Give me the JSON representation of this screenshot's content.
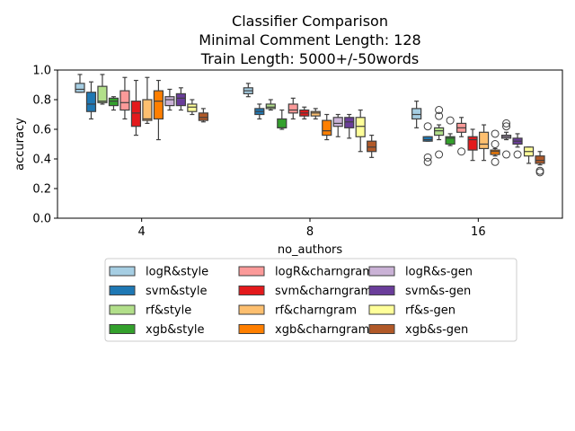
{
  "chart_data": {
    "type": "box",
    "title_lines": [
      "Classifier Comparison",
      "Minimal Comment Length: 128",
      "Train Length: 5000+/-50words"
    ],
    "xlabel": "no_authors",
    "ylabel": "accuracy",
    "ylim": [
      0.0,
      1.0
    ],
    "yticks": [
      "0.0",
      "0.2",
      "0.4",
      "0.6",
      "0.8",
      "1.0"
    ],
    "categories": [
      "4",
      "8",
      "16"
    ],
    "legend_position": "below-plot",
    "series": [
      {
        "name": "logR&style",
        "color": "#a6cee3",
        "boxes": [
          {
            "q1": 0.85,
            "med": 0.87,
            "q3": 0.91,
            "wlo": 0.85,
            "whi": 0.97,
            "fliers": []
          },
          {
            "q1": 0.84,
            "med": 0.86,
            "q3": 0.88,
            "wlo": 0.82,
            "whi": 0.91,
            "fliers": []
          },
          {
            "q1": 0.67,
            "med": 0.7,
            "q3": 0.74,
            "wlo": 0.61,
            "whi": 0.79,
            "fliers": []
          }
        ]
      },
      {
        "name": "svm&style",
        "color": "#1f78b4",
        "boxes": [
          {
            "q1": 0.72,
            "med": 0.77,
            "q3": 0.85,
            "wlo": 0.67,
            "whi": 0.92,
            "fliers": []
          },
          {
            "q1": 0.7,
            "med": 0.72,
            "q3": 0.74,
            "wlo": 0.67,
            "whi": 0.77,
            "fliers": []
          },
          {
            "q1": 0.52,
            "med": 0.53,
            "q3": 0.55,
            "wlo": 0.52,
            "whi": 0.55,
            "fliers": [
              0.41,
              0.38,
              0.62
            ]
          }
        ]
      },
      {
        "name": "rf&style",
        "color": "#b2df8a",
        "boxes": [
          {
            "q1": 0.78,
            "med": 0.79,
            "q3": 0.89,
            "wlo": 0.77,
            "whi": 0.97,
            "fliers": []
          },
          {
            "q1": 0.74,
            "med": 0.75,
            "q3": 0.77,
            "wlo": 0.73,
            "whi": 0.8,
            "fliers": []
          },
          {
            "q1": 0.56,
            "med": 0.59,
            "q3": 0.61,
            "wlo": 0.53,
            "whi": 0.63,
            "fliers": [
              0.43,
              0.69,
              0.73
            ]
          }
        ]
      },
      {
        "name": "xgb&style",
        "color": "#33a02c",
        "boxes": [
          {
            "q1": 0.76,
            "med": 0.79,
            "q3": 0.81,
            "wlo": 0.73,
            "whi": 0.82,
            "fliers": []
          },
          {
            "q1": 0.61,
            "med": 0.61,
            "q3": 0.67,
            "wlo": 0.6,
            "whi": 0.73,
            "fliers": []
          },
          {
            "q1": 0.5,
            "med": 0.54,
            "q3": 0.55,
            "wlo": 0.49,
            "whi": 0.57,
            "fliers": [
              0.66
            ]
          }
        ]
      },
      {
        "name": "logR&charngram",
        "color": "#fb9a99",
        "boxes": [
          {
            "q1": 0.73,
            "med": 0.78,
            "q3": 0.86,
            "wlo": 0.67,
            "whi": 0.95,
            "fliers": []
          },
          {
            "q1": 0.71,
            "med": 0.73,
            "q3": 0.77,
            "wlo": 0.67,
            "whi": 0.81,
            "fliers": []
          },
          {
            "q1": 0.58,
            "med": 0.61,
            "q3": 0.64,
            "wlo": 0.55,
            "whi": 0.68,
            "fliers": [
              0.45
            ]
          }
        ]
      },
      {
        "name": "svm&charngram",
        "color": "#e31a1c",
        "boxes": [
          {
            "q1": 0.62,
            "med": 0.71,
            "q3": 0.79,
            "wlo": 0.56,
            "whi": 0.93,
            "fliers": []
          },
          {
            "q1": 0.69,
            "med": 0.71,
            "q3": 0.73,
            "wlo": 0.67,
            "whi": 0.75,
            "fliers": []
          },
          {
            "q1": 0.46,
            "med": 0.53,
            "q3": 0.55,
            "wlo": 0.39,
            "whi": 0.6,
            "fliers": []
          }
        ]
      },
      {
        "name": "rf&charngram",
        "color": "#fdbf6f",
        "boxes": [
          {
            "q1": 0.66,
            "med": 0.67,
            "q3": 0.8,
            "wlo": 0.64,
            "whi": 0.95,
            "fliers": []
          },
          {
            "q1": 0.69,
            "med": 0.71,
            "q3": 0.72,
            "wlo": 0.67,
            "whi": 0.74,
            "fliers": []
          },
          {
            "q1": 0.47,
            "med": 0.5,
            "q3": 0.58,
            "wlo": 0.39,
            "whi": 0.63,
            "fliers": []
          }
        ]
      },
      {
        "name": "xgb&charngram",
        "color": "#ff7f00",
        "boxes": [
          {
            "q1": 0.67,
            "med": 0.79,
            "q3": 0.86,
            "wlo": 0.53,
            "whi": 0.93,
            "fliers": []
          },
          {
            "q1": 0.56,
            "med": 0.59,
            "q3": 0.66,
            "wlo": 0.53,
            "whi": 0.7,
            "fliers": []
          },
          {
            "q1": 0.43,
            "med": 0.45,
            "q3": 0.46,
            "wlo": 0.42,
            "whi": 0.47,
            "fliers": [
              0.38,
              0.5,
              0.57
            ]
          }
        ]
      },
      {
        "name": "logR&s-gen",
        "color": "#cab2d6",
        "boxes": [
          {
            "q1": 0.76,
            "med": 0.8,
            "q3": 0.82,
            "wlo": 0.73,
            "whi": 0.87,
            "fliers": []
          },
          {
            "q1": 0.62,
            "med": 0.64,
            "q3": 0.68,
            "wlo": 0.55,
            "whi": 0.7,
            "fliers": []
          },
          {
            "q1": 0.54,
            "med": 0.55,
            "q3": 0.56,
            "wlo": 0.53,
            "whi": 0.58,
            "fliers": [
              0.43,
              0.62,
              0.64
            ]
          }
        ]
      },
      {
        "name": "svm&s-gen",
        "color": "#6a3d9a",
        "boxes": [
          {
            "q1": 0.76,
            "med": 0.81,
            "q3": 0.84,
            "wlo": 0.73,
            "whi": 0.88,
            "fliers": []
          },
          {
            "q1": 0.61,
            "med": 0.65,
            "q3": 0.68,
            "wlo": 0.54,
            "whi": 0.7,
            "fliers": []
          },
          {
            "q1": 0.5,
            "med": 0.52,
            "q3": 0.54,
            "wlo": 0.48,
            "whi": 0.57,
            "fliers": [
              0.43
            ]
          }
        ]
      },
      {
        "name": "rf&s-gen",
        "color": "#ffff99",
        "boxes": [
          {
            "q1": 0.72,
            "med": 0.75,
            "q3": 0.77,
            "wlo": 0.7,
            "whi": 0.8,
            "fliers": []
          },
          {
            "q1": 0.55,
            "med": 0.62,
            "q3": 0.68,
            "wlo": 0.45,
            "whi": 0.73,
            "fliers": []
          },
          {
            "q1": 0.42,
            "med": 0.45,
            "q3": 0.48,
            "wlo": 0.37,
            "whi": 0.48,
            "fliers": []
          }
        ]
      },
      {
        "name": "xgb&s-gen",
        "color": "#b15928",
        "boxes": [
          {
            "q1": 0.66,
            "med": 0.68,
            "q3": 0.71,
            "wlo": 0.65,
            "whi": 0.74,
            "fliers": []
          },
          {
            "q1": 0.45,
            "med": 0.48,
            "q3": 0.52,
            "wlo": 0.41,
            "whi": 0.56,
            "fliers": []
          },
          {
            "q1": 0.37,
            "med": 0.39,
            "q3": 0.42,
            "wlo": 0.36,
            "whi": 0.45,
            "fliers": [
              0.31,
              0.32
            ]
          }
        ]
      }
    ]
  }
}
